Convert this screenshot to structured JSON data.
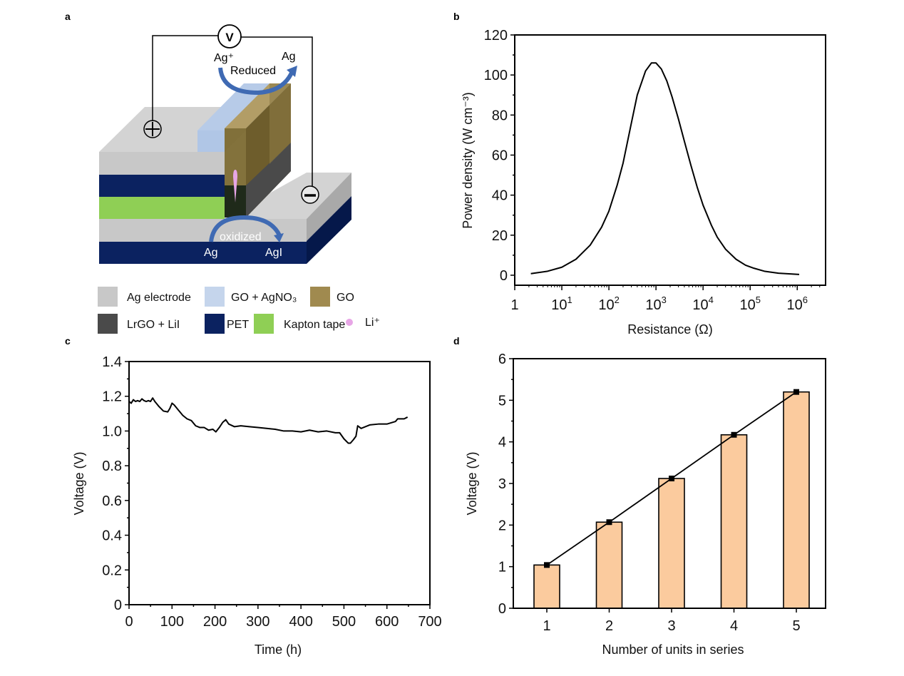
{
  "figure": {
    "panels": [
      "a",
      "b",
      "c",
      "d"
    ]
  },
  "diagram": {
    "panel_label": "a",
    "voltmeter_label": "V",
    "top_reaction": {
      "from": "Ag⁺",
      "to": "Ag",
      "label": "Reduced"
    },
    "bottom_reaction": {
      "from": "Ag",
      "to": "AgI",
      "label": "oxidized"
    },
    "positive_terminal": "+",
    "negative_terminal": "−",
    "legend": [
      {
        "label": "Ag electrode",
        "color": "#C8C8C8"
      },
      {
        "label": "GO + AgNO₃",
        "color": "#C5D5EC"
      },
      {
        "label": "GO",
        "color": "#A08A4F"
      },
      {
        "label": "LrGO + LiI",
        "color": "#4A4A4A"
      },
      {
        "label": "PET",
        "color": "#0B2260"
      },
      {
        "label": "Kapton tape",
        "color": "#8FCF55"
      },
      {
        "label": "Li⁺",
        "color": "#E7A6E6"
      }
    ]
  },
  "chart_data": [
    {
      "panel_label": "b",
      "type": "line",
      "title": "",
      "xlabel": "Resistance (Ω)",
      "ylabel": "Power density (W cm⁻³)",
      "xscale": "log",
      "xlim": [
        1,
        4000000
      ],
      "ylim": [
        -5,
        120
      ],
      "xticks": [
        {
          "value": 1,
          "label": "1",
          "sup": ""
        },
        {
          "value": 10,
          "label": "10",
          "sup": "1"
        },
        {
          "value": 100,
          "label": "10",
          "sup": "2"
        },
        {
          "value": 1000,
          "label": "10",
          "sup": "3"
        },
        {
          "value": 10000,
          "label": "10",
          "sup": "4"
        },
        {
          "value": 100000,
          "label": "10",
          "sup": "5"
        },
        {
          "value": 1000000,
          "label": "10",
          "sup": "6"
        }
      ],
      "yticks": [
        0,
        20,
        40,
        60,
        80,
        100,
        120
      ],
      "grid": false,
      "series": [
        {
          "name": "Power density",
          "color": "#000000",
          "x": [
            2.2,
            5,
            10,
            20,
            40,
            70,
            100,
            150,
            200,
            300,
            400,
            600,
            800,
            1000,
            1300,
            1700,
            2200,
            3000,
            4000,
            5500,
            7500,
            10000,
            15000,
            20000,
            30000,
            50000,
            80000,
            120000,
            200000,
            400000,
            1100000
          ],
          "y": [
            0.8,
            2,
            4,
            8,
            15,
            24,
            32,
            45,
            56,
            76,
            90,
            102,
            106,
            106,
            103,
            97,
            89,
            78,
            67,
            55,
            44,
            35,
            25,
            19,
            13,
            8,
            5,
            3.5,
            2,
            1,
            0.4
          ]
        }
      ]
    },
    {
      "panel_label": "c",
      "type": "line",
      "title": "",
      "xlabel": "Time (h)",
      "ylabel": "Voltage (V)",
      "xlim": [
        0,
        700
      ],
      "ylim": [
        0,
        1.4
      ],
      "xticks": [
        0,
        100,
        200,
        300,
        400,
        500,
        600,
        700
      ],
      "yticks": [
        0,
        0.2,
        0.4,
        0.6,
        0.8,
        1.0,
        1.2,
        1.4
      ],
      "ytick_labels": [
        "0",
        "0.2",
        "0.4",
        "0.6",
        "0.8",
        "1.0",
        "1.2",
        "1.4"
      ],
      "grid": false,
      "series": [
        {
          "name": "Voltage",
          "color": "#000000",
          "x": [
            0,
            5,
            10,
            15,
            20,
            25,
            30,
            35,
            40,
            45,
            50,
            55,
            60,
            70,
            80,
            90,
            95,
            100,
            105,
            115,
            125,
            135,
            145,
            155,
            165,
            175,
            185,
            195,
            202,
            210,
            218,
            225,
            232,
            245,
            260,
            280,
            300,
            320,
            340,
            360,
            380,
            400,
            420,
            440,
            460,
            480,
            490,
            500,
            510,
            515,
            522,
            528,
            532,
            540,
            560,
            580,
            600,
            620,
            625,
            640,
            648
          ],
          "y": [
            1.17,
            1.16,
            1.18,
            1.17,
            1.175,
            1.17,
            1.185,
            1.175,
            1.17,
            1.175,
            1.17,
            1.19,
            1.17,
            1.14,
            1.115,
            1.11,
            1.13,
            1.16,
            1.15,
            1.12,
            1.09,
            1.07,
            1.06,
            1.03,
            1.02,
            1.02,
            1.005,
            1.01,
            0.995,
            1.02,
            1.05,
            1.065,
            1.04,
            1.025,
            1.03,
            1.025,
            1.02,
            1.015,
            1.01,
            1.0,
            1.0,
            0.995,
            1.005,
            0.995,
            1.0,
            0.99,
            0.99,
            0.955,
            0.93,
            0.93,
            0.95,
            0.97,
            1.03,
            1.015,
            1.035,
            1.04,
            1.04,
            1.055,
            1.07,
            1.07,
            1.08
          ]
        }
      ]
    },
    {
      "panel_label": "d",
      "type": "bar",
      "title": "",
      "xlabel": "Number of units in series",
      "ylabel": "Voltage (V)",
      "categories": [
        "1",
        "2",
        "3",
        "4",
        "5"
      ],
      "values": [
        1.04,
        2.07,
        3.12,
        4.17,
        5.2
      ],
      "ylim": [
        0,
        6
      ],
      "yticks": [
        0,
        1,
        2,
        3,
        4,
        5,
        6
      ],
      "grid": false,
      "bar_color": "#FBCB9E",
      "line_overlay": {
        "color": "#000000",
        "marker": "square"
      }
    }
  ]
}
